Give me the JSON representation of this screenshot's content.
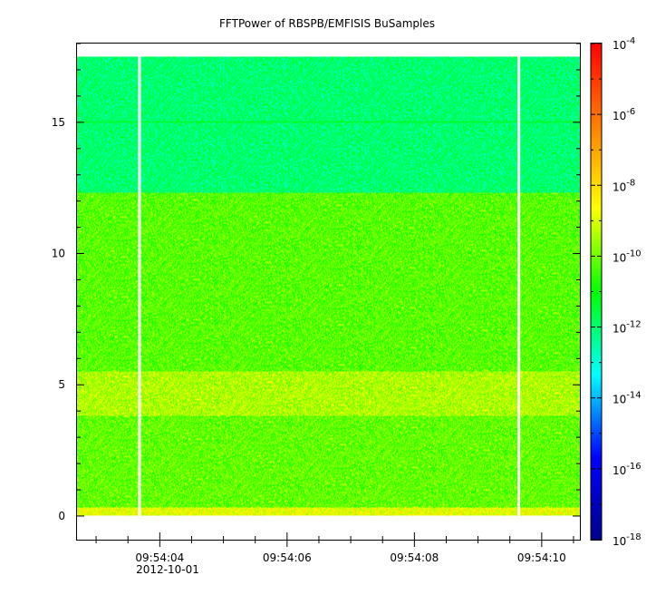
{
  "chart_data": {
    "type": "heatmap",
    "title": "FFTPower of RBSPB/EMFISIS  BuSamples",
    "xlabel": "",
    "ylabel": "",
    "x_axis": {
      "range": [
        "09:54:02.7",
        "09:54:10.6"
      ],
      "major_ticks": [
        "09:54:04",
        "09:54:06",
        "09:54:08",
        "09:54:10"
      ],
      "date_label": "2012-10-01"
    },
    "y_axis": {
      "range": [
        -0.9,
        18.0
      ],
      "ticks": [
        0,
        5,
        10,
        15
      ]
    },
    "colorbar": {
      "scale": "log",
      "range": [
        1e-18,
        0.0001
      ],
      "ticks": [
        {
          "base": "10",
          "exp": "-4"
        },
        {
          "base": "10",
          "exp": "-6"
        },
        {
          "base": "10",
          "exp": "-8"
        },
        {
          "base": "10",
          "exp": "-10"
        },
        {
          "base": "10",
          "exp": "-12"
        },
        {
          "base": "10",
          "exp": "-14"
        },
        {
          "base": "10",
          "exp": "-16"
        },
        {
          "base": "10",
          "exp": "-18"
        }
      ],
      "colormap": [
        "#00008b",
        "#0000ff",
        "#00ffff",
        "#00ff00",
        "#ffff00",
        "#ff8000",
        "#ff0000"
      ]
    },
    "data_coverage": {
      "freq_range": [
        0.0,
        17.5
      ],
      "time_range": [
        "09:54:02.7",
        "09:54:10.6"
      ],
      "gaps": [
        [
          "09:54:03.66",
          "09:54:03.70"
        ],
        [
          "09:54:09.62",
          "09:54:09.66"
        ]
      ]
    },
    "power_bands": [
      {
        "freq_range": [
          12.3,
          17.5
        ],
        "log10_power": -12.0
      },
      {
        "freq_range": [
          5.5,
          12.3
        ],
        "log10_power": -10.2
      },
      {
        "freq_range": [
          3.8,
          5.5
        ],
        "log10_power": -9.4
      },
      {
        "freq_range": [
          0.3,
          3.8
        ],
        "log10_power": -10.1
      },
      {
        "freq_range": [
          0.0,
          0.3
        ],
        "log10_power": -8.8
      }
    ],
    "features": [
      {
        "type": "narrowband_line",
        "freq": 15.0,
        "log10_power": -11.5
      }
    ]
  }
}
